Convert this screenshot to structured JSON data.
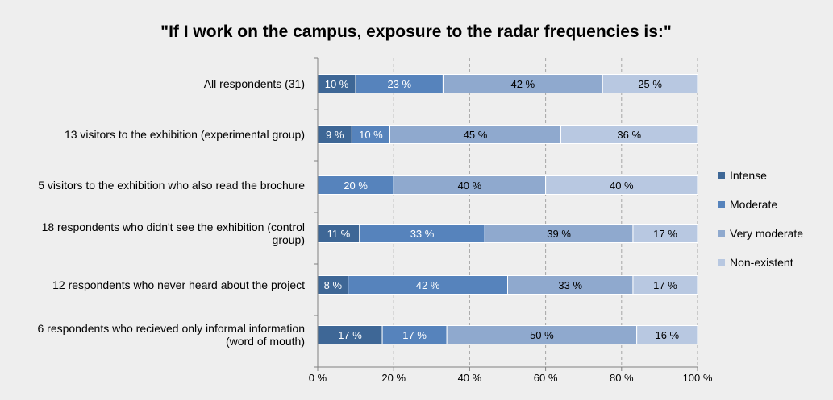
{
  "chart_data": {
    "type": "bar",
    "orientation": "horizontal",
    "stacked": true,
    "percent_stacked": true,
    "title": "\"If I work on the campus, exposure to the radar frequencies is:\"",
    "xlabel": "",
    "ylabel": "",
    "xlim": [
      0,
      100
    ],
    "x_ticks": [
      "0 %",
      "20 %",
      "40 %",
      "60 %",
      "80 %",
      "100 %"
    ],
    "grid": true,
    "legend_position": "right",
    "categories": [
      [
        "All respondents (31)"
      ],
      [
        "13 visitors to the exhibition (experimental group)"
      ],
      [
        "5 visitors to the exhibition who also read the brochure"
      ],
      [
        "18 respondents who didn't see the exhibition (control",
        "group)"
      ],
      [
        "12 respondents who never heard about the project"
      ],
      [
        "6 respondents who recieved only informal information",
        "(word of mouth)"
      ]
    ],
    "series": [
      {
        "name": "Intense",
        "color": "#3e6796",
        "values": [
          10,
          9,
          0,
          11,
          8,
          17
        ],
        "labels": [
          "10 %",
          "9 %",
          "",
          "11 %",
          "8 %",
          "17 %"
        ]
      },
      {
        "name": "Moderate",
        "color": "#5683bc",
        "values": [
          23,
          10,
          20,
          33,
          42,
          17
        ],
        "labels": [
          "23 %",
          "10 %",
          "20 %",
          "33 %",
          "42 %",
          "17 %"
        ]
      },
      {
        "name": "Very moderate",
        "color": "#8fa9ce",
        "values": [
          42,
          45,
          40,
          39,
          33,
          50
        ],
        "labels": [
          "42 %",
          "45 %",
          "40 %",
          "39 %",
          "33 %",
          "50 %"
        ]
      },
      {
        "name": "Non-existent",
        "color": "#b8c8e1",
        "values": [
          25,
          36,
          40,
          17,
          17,
          16
        ],
        "labels": [
          "25 %",
          "36 %",
          "40 %",
          "17 %",
          "17 %",
          "16 %"
        ]
      }
    ]
  }
}
